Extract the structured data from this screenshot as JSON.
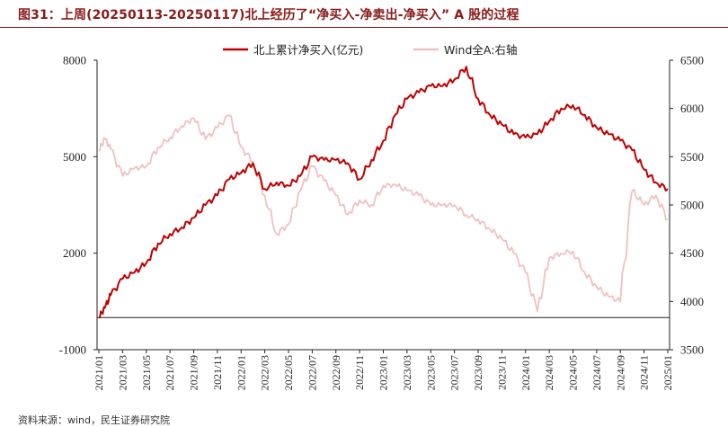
{
  "header": {
    "title": "图31：上周(20250113-20250117)北上经历了“净买入-净卖出-净买入” A 股的过程"
  },
  "footer": {
    "source": "资料来源：wind，民生证券研究院"
  },
  "colors": {
    "primary": "#c00000",
    "secondary": "#efc1c1",
    "title": "#8b1a1a",
    "axis": "#222222"
  },
  "chart_data": {
    "type": "line",
    "title": "",
    "legend_placement": "top",
    "grid": false,
    "x_ticks": [
      "2021/01",
      "2021/03",
      "2021/05",
      "2021/07",
      "2021/09",
      "2021/11",
      "2022/01",
      "2022/03",
      "2022/05",
      "2022/07",
      "2022/09",
      "2022/11",
      "2023/01",
      "2023/03",
      "2023/05",
      "2023/07",
      "2023/09",
      "2023/11",
      "2024/01",
      "2024/03",
      "2024/05",
      "2024/07",
      "2024/09",
      "2024/11",
      "2025/01"
    ],
    "y_left": {
      "ticks": [
        "8000",
        "5000",
        "2000",
        "-1000"
      ],
      "range": [
        -1000,
        8000
      ],
      "baseline": 0
    },
    "y_right": {
      "ticks": [
        "6500",
        "6000",
        "5500",
        "5000",
        "4500",
        "4000",
        "3500"
      ],
      "range": [
        3500,
        6500
      ]
    },
    "series": [
      {
        "name": "北上累计净买入(亿元)",
        "axis": "left",
        "points": [
          [
            "2021/01",
            0
          ],
          [
            "2021/01",
            300
          ],
          [
            "2021/02",
            700
          ],
          [
            "2021/03",
            1200
          ],
          [
            "2021/04",
            1400
          ],
          [
            "2021/05",
            1700
          ],
          [
            "2021/06",
            2300
          ],
          [
            "2021/07",
            2600
          ],
          [
            "2021/08",
            2800
          ],
          [
            "2021/09",
            3100
          ],
          [
            "2021/10",
            3500
          ],
          [
            "2021/11",
            3800
          ],
          [
            "2021/12",
            4300
          ],
          [
            "2022/01",
            4500
          ],
          [
            "2022/02",
            4800
          ],
          [
            "2022/03",
            4000
          ],
          [
            "2022/04",
            4200
          ],
          [
            "2022/05",
            4100
          ],
          [
            "2022/06",
            4400
          ],
          [
            "2022/07",
            5000
          ],
          [
            "2022/08",
            4900
          ],
          [
            "2022/09",
            4900
          ],
          [
            "2022/10",
            4800
          ],
          [
            "2022/11",
            4300
          ],
          [
            "2022/12",
            4900
          ],
          [
            "2023/01",
            5500
          ],
          [
            "2023/02",
            6300
          ],
          [
            "2023/03",
            6800
          ],
          [
            "2023/04",
            7000
          ],
          [
            "2023/05",
            7200
          ],
          [
            "2023/06",
            7200
          ],
          [
            "2023/07",
            7400
          ],
          [
            "2023/08",
            7800
          ],
          [
            "2023/09",
            6800
          ],
          [
            "2023/10",
            6300
          ],
          [
            "2023/11",
            6000
          ],
          [
            "2023/12",
            5700
          ],
          [
            "2024/01",
            5600
          ],
          [
            "2024/02",
            5700
          ],
          [
            "2024/03",
            6100
          ],
          [
            "2024/04",
            6500
          ],
          [
            "2024/05",
            6600
          ],
          [
            "2024/06",
            6300
          ],
          [
            "2024/07",
            5900
          ],
          [
            "2024/08",
            5700
          ],
          [
            "2024/09",
            5500
          ],
          [
            "2024/10",
            5200
          ],
          [
            "2024/11",
            4600
          ],
          [
            "2024/12",
            4200
          ],
          [
            "2025/01",
            4000
          ]
        ]
      },
      {
        "name": "Wind全A:右轴",
        "axis": "right",
        "points": [
          [
            "2021/01",
            5560
          ],
          [
            "2021/01",
            5690
          ],
          [
            "2021/02",
            5580
          ],
          [
            "2021/03",
            5300
          ],
          [
            "2021/04",
            5380
          ],
          [
            "2021/05",
            5400
          ],
          [
            "2021/06",
            5600
          ],
          [
            "2021/07",
            5700
          ],
          [
            "2021/08",
            5820
          ],
          [
            "2021/09",
            5900
          ],
          [
            "2021/10",
            5680
          ],
          [
            "2021/11",
            5800
          ],
          [
            "2021/12",
            5930
          ],
          [
            "2022/01",
            5600
          ],
          [
            "2022/02",
            5450
          ],
          [
            "2022/03",
            5100
          ],
          [
            "2022/04",
            4700
          ],
          [
            "2022/05",
            4800
          ],
          [
            "2022/06",
            5150
          ],
          [
            "2022/07",
            5400
          ],
          [
            "2022/08",
            5250
          ],
          [
            "2022/09",
            5100
          ],
          [
            "2022/10",
            4900
          ],
          [
            "2022/11",
            5050
          ],
          [
            "2022/12",
            5000
          ],
          [
            "2023/01",
            5200
          ],
          [
            "2023/02",
            5210
          ],
          [
            "2023/03",
            5150
          ],
          [
            "2023/04",
            5100
          ],
          [
            "2023/05",
            5000
          ],
          [
            "2023/06",
            5000
          ],
          [
            "2023/07",
            5000
          ],
          [
            "2023/08",
            4900
          ],
          [
            "2023/09",
            4850
          ],
          [
            "2023/10",
            4750
          ],
          [
            "2023/11",
            4650
          ],
          [
            "2023/12",
            4500
          ],
          [
            "2024/01",
            4300
          ],
          [
            "2024/02",
            3900
          ],
          [
            "2024/03",
            4450
          ],
          [
            "2024/04",
            4500
          ],
          [
            "2024/05",
            4520
          ],
          [
            "2024/06",
            4300
          ],
          [
            "2024/07",
            4150
          ],
          [
            "2024/08",
            4050
          ],
          [
            "2024/09",
            4000
          ],
          [
            "2024/10",
            5150
          ],
          [
            "2024/11",
            5000
          ],
          [
            "2024/12",
            5100
          ],
          [
            "2025/01",
            4850
          ]
        ]
      }
    ]
  }
}
